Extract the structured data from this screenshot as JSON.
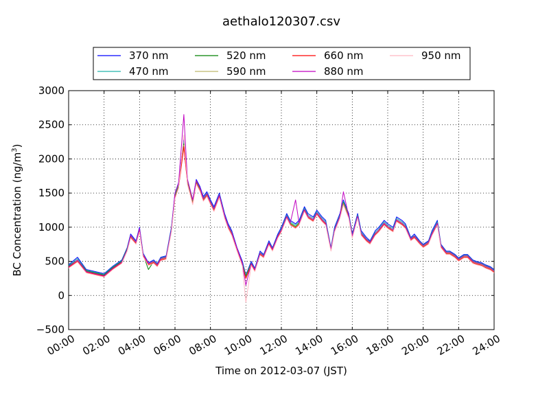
{
  "chart_data": {
    "type": "line",
    "title": "aethalo120307.csv",
    "xlabel": "Time on 2012-03-07 (JST)",
    "ylabel": "BC Concentration (ng/m",
    "ylabel_sup": "3",
    "ylabel_close": ")",
    "xlim": [
      0,
      24
    ],
    "ylim": [
      -500,
      3000
    ],
    "grid": true,
    "legend_position": "top",
    "x_tick_labels": [
      "00:00",
      "02:00",
      "04:00",
      "06:00",
      "08:00",
      "10:00",
      "12:00",
      "14:00",
      "16:00",
      "18:00",
      "20:00",
      "22:00",
      "24:00"
    ],
    "y_tick_labels": [
      "3000",
      "2500",
      "2000",
      "1500",
      "1000",
      "500",
      "0",
      "−500"
    ],
    "y_ticks": [
      3000,
      2500,
      2000,
      1500,
      1000,
      500,
      0,
      -500
    ],
    "x": [
      0.0,
      0.5,
      1.0,
      1.5,
      2.0,
      2.5,
      3.0,
      3.3,
      3.5,
      3.8,
      4.0,
      4.2,
      4.5,
      4.8,
      5.0,
      5.2,
      5.5,
      5.8,
      6.0,
      6.2,
      6.5,
      6.7,
      6.9,
      7.0,
      7.2,
      7.4,
      7.6,
      7.8,
      8.0,
      8.2,
      8.5,
      8.8,
      9.0,
      9.2,
      9.5,
      9.8,
      10.0,
      10.3,
      10.5,
      10.8,
      11.0,
      11.3,
      11.5,
      11.8,
      12.0,
      12.3,
      12.5,
      12.8,
      13.0,
      13.3,
      13.5,
      13.8,
      14.0,
      14.3,
      14.5,
      14.8,
      15.0,
      15.3,
      15.5,
      15.8,
      16.0,
      16.3,
      16.5,
      16.8,
      17.0,
      17.3,
      17.5,
      17.8,
      18.0,
      18.3,
      18.5,
      18.8,
      19.0,
      19.3,
      19.5,
      19.8,
      20.0,
      20.3,
      20.5,
      20.8,
      21.0,
      21.3,
      21.5,
      21.8,
      22.0,
      22.3,
      22.5,
      22.8,
      23.0,
      23.3,
      23.5,
      23.8,
      24.0
    ],
    "series": [
      {
        "name": "370 nm",
        "color": "#0000ff",
        "values": [
          450,
          560,
          380,
          350,
          320,
          430,
          520,
          700,
          900,
          800,
          1000,
          620,
          480,
          520,
          470,
          560,
          580,
          1000,
          1500,
          1650,
          2300,
          1700,
          1500,
          1400,
          1700,
          1600,
          1450,
          1520,
          1400,
          1300,
          1500,
          1200,
          1050,
          950,
          700,
          500,
          300,
          500,
          400,
          650,
          600,
          800,
          700,
          900,
          1000,
          1200,
          1100,
          1050,
          1100,
          1300,
          1200,
          1150,
          1250,
          1150,
          1100,
          700,
          1000,
          1200,
          1400,
          1200,
          900,
          1200,
          950,
          850,
          800,
          950,
          1000,
          1100,
          1050,
          1000,
          1150,
          1100,
          1050,
          850,
          900,
          800,
          750,
          800,
          950,
          1100,
          750,
          650,
          650,
          600,
          550,
          600,
          600,
          520,
          500,
          480,
          450,
          420,
          380
        ]
      },
      {
        "name": "470 nm",
        "color": "#20b2aa",
        "values": [
          440,
          540,
          370,
          340,
          310,
          420,
          510,
          690,
          880,
          790,
          980,
          610,
          470,
          510,
          460,
          550,
          570,
          980,
          1470,
          1620,
          2250,
          1680,
          1480,
          1380,
          1680,
          1580,
          1430,
          1500,
          1380,
          1280,
          1480,
          1180,
          1030,
          930,
          690,
          480,
          290,
          480,
          390,
          630,
          590,
          780,
          690,
          880,
          980,
          1180,
          1080,
          1030,
          1080,
          1280,
          1180,
          1130,
          1230,
          1130,
          1080,
          690,
          980,
          1180,
          1380,
          1180,
          880,
          1180,
          930,
          830,
          790,
          930,
          980,
          1080,
          1030,
          980,
          1130,
          1080,
          1030,
          840,
          880,
          790,
          740,
          790,
          930,
          1080,
          740,
          640,
          640,
          590,
          540,
          590,
          590,
          510,
          490,
          470,
          440,
          410,
          370
        ]
      },
      {
        "name": "520 nm",
        "color": "#008000",
        "values": [
          430,
          520,
          360,
          330,
          300,
          410,
          500,
          680,
          870,
          780,
          960,
          600,
          380,
          500,
          450,
          540,
          560,
          960,
          1450,
          1600,
          2220,
          1660,
          1460,
          1360,
          1660,
          1560,
          1410,
          1480,
          1360,
          1260,
          1460,
          1160,
          1010,
          910,
          680,
          460,
          280,
          470,
          380,
          620,
          580,
          770,
          680,
          870,
          960,
          1160,
          1060,
          1010,
          1060,
          1260,
          1160,
          1110,
          1210,
          1110,
          1060,
          680,
          960,
          1160,
          1360,
          1160,
          870,
          1160,
          910,
          820,
          780,
          910,
          960,
          1060,
          1010,
          960,
          1110,
          1060,
          1010,
          830,
          870,
          780,
          730,
          780,
          910,
          1060,
          730,
          630,
          630,
          580,
          530,
          580,
          580,
          500,
          480,
          460,
          430,
          400,
          360
        ]
      },
      {
        "name": "590 nm",
        "color": "#bdb76b",
        "values": [
          420,
          510,
          350,
          320,
          290,
          400,
          490,
          670,
          860,
          770,
          950,
          590,
          460,
          490,
          440,
          530,
          550,
          950,
          1440,
          1590,
          2200,
          1650,
          1450,
          1350,
          1650,
          1550,
          1400,
          1470,
          1350,
          1250,
          1450,
          1150,
          1000,
          900,
          670,
          450,
          260,
          460,
          370,
          610,
          570,
          760,
          670,
          860,
          950,
          1150,
          1050,
          1000,
          1050,
          1250,
          1150,
          1100,
          1200,
          1100,
          1050,
          670,
          950,
          1150,
          1350,
          1150,
          860,
          1150,
          900,
          810,
          770,
          900,
          950,
          1050,
          1000,
          950,
          1100,
          1050,
          1000,
          820,
          860,
          770,
          720,
          770,
          900,
          1050,
          720,
          620,
          620,
          570,
          520,
          570,
          570,
          490,
          470,
          450,
          420,
          390,
          350
        ]
      },
      {
        "name": "660 nm",
        "color": "#ff0000",
        "values": [
          410,
          500,
          340,
          310,
          280,
          390,
          480,
          660,
          850,
          760,
          940,
          580,
          450,
          480,
          430,
          520,
          540,
          940,
          1430,
          1580,
          2180,
          1640,
          1440,
          1340,
          1640,
          1540,
          1390,
          1460,
          1340,
          1240,
          1440,
          1140,
          990,
          890,
          660,
          440,
          250,
          450,
          360,
          600,
          560,
          750,
          660,
          850,
          940,
          1140,
          1040,
          990,
          1040,
          1240,
          1140,
          1090,
          1190,
          1090,
          1040,
          660,
          940,
          1140,
          1340,
          1140,
          850,
          1140,
          890,
          800,
          760,
          890,
          940,
          1040,
          990,
          940,
          1090,
          1040,
          990,
          810,
          850,
          760,
          710,
          760,
          890,
          1040,
          710,
          610,
          610,
          560,
          510,
          560,
          560,
          480,
          460,
          440,
          410,
          380,
          340
        ]
      },
      {
        "name": "880 nm",
        "color": "#c000c0",
        "values": [
          420,
          520,
          350,
          320,
          290,
          400,
          490,
          670,
          880,
          780,
          980,
          600,
          470,
          500,
          450,
          540,
          560,
          960,
          1500,
          1640,
          2650,
          1700,
          1500,
          1400,
          1680,
          1580,
          1420,
          1490,
          1370,
          1270,
          1470,
          1170,
          1020,
          920,
          690,
          470,
          150,
          470,
          380,
          620,
          580,
          770,
          680,
          870,
          960,
          1160,
          1060,
          1400,
          1060,
          1260,
          1160,
          1110,
          1210,
          1110,
          1060,
          680,
          960,
          1160,
          1520,
          1160,
          870,
          1160,
          910,
          820,
          780,
          910,
          960,
          1060,
          1010,
          960,
          1110,
          1060,
          1010,
          830,
          870,
          780,
          730,
          780,
          910,
          1060,
          730,
          630,
          630,
          580,
          530,
          580,
          580,
          500,
          480,
          460,
          430,
          400,
          360
        ]
      },
      {
        "name": "950 nm",
        "color": "#ffb6c1",
        "values": [
          400,
          490,
          330,
          300,
          270,
          380,
          470,
          650,
          840,
          750,
          930,
          570,
          440,
          470,
          420,
          510,
          530,
          930,
          1420,
          1570,
          2350,
          1630,
          1430,
          1330,
          1630,
          1530,
          1380,
          1450,
          1330,
          1230,
          1430,
          1130,
          980,
          880,
          650,
          430,
          -100,
          440,
          350,
          590,
          550,
          740,
          650,
          840,
          930,
          1130,
          1030,
          980,
          1030,
          1230,
          1130,
          1080,
          1180,
          1080,
          1030,
          650,
          930,
          1130,
          1330,
          1130,
          840,
          1130,
          880,
          790,
          750,
          880,
          930,
          1030,
          980,
          930,
          1080,
          1030,
          980,
          800,
          840,
          750,
          700,
          750,
          880,
          1030,
          700,
          600,
          600,
          550,
          500,
          550,
          550,
          470,
          450,
          430,
          400,
          370,
          330
        ]
      }
    ]
  }
}
